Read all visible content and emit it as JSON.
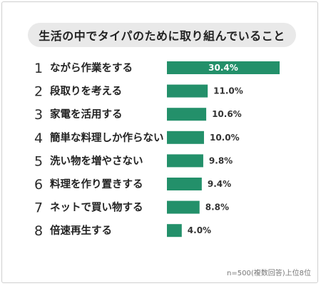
{
  "title": "生活の中でタイパのために取り組んでいること",
  "note": "n=500(複数回答)上位8位",
  "colors": {
    "bar": "#23906a",
    "bar_label_inside": "#ffffff",
    "bar_label_outside": "#333333"
  },
  "chart_data": {
    "type": "bar",
    "orientation": "horizontal",
    "ranks": [
      "1",
      "2",
      "3",
      "4",
      "5",
      "6",
      "7",
      "8"
    ],
    "categories": [
      "ながら作業をする",
      "段取りを考える",
      "家電を活用する",
      "簡単な料理しか作らない",
      "洗い物を増やさない",
      "料理を作り置きする",
      "ネットで買い物する",
      "倍速再生する"
    ],
    "values": [
      30.4,
      11.0,
      10.6,
      10.0,
      9.8,
      9.4,
      8.8,
      4.0
    ],
    "value_labels": [
      "30.4%",
      "11.0%",
      "10.6%",
      "10.0%",
      "9.8%",
      "9.4%",
      "8.8%",
      "4.0%"
    ],
    "unit": "%",
    "xlim": [
      0,
      30.4
    ],
    "grid": false,
    "legend": "none"
  }
}
